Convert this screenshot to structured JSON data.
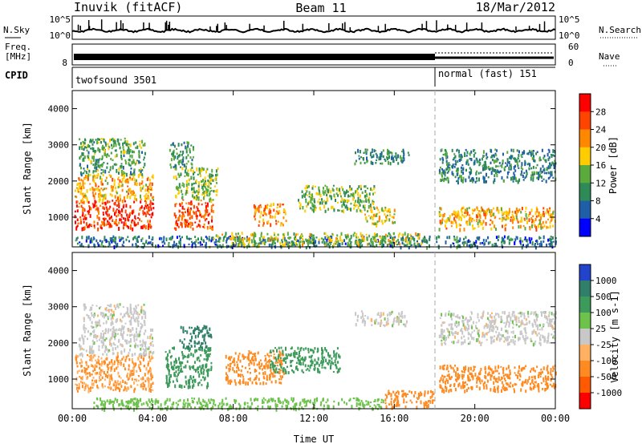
{
  "header": {
    "station": "Inuvik (fitACF)",
    "beam": "Beam 11",
    "date": "18/Mar/2012"
  },
  "left_labels": {
    "nsky": "N.Sky",
    "freq_line1": "Freq.",
    "freq_line2": "[MHz]",
    "cpid": "CPID"
  },
  "right_labels": {
    "nsearch": "N.Search",
    "nave": "Nave"
  },
  "noise_axis": {
    "top": "10^5",
    "bottom": "10^0"
  },
  "freq_axis": {
    "left_value": "8",
    "right_top": "60",
    "right_bottom": "0"
  },
  "cpid_segments": [
    {
      "label": "twofsound 3501",
      "start_hour": 0,
      "end_hour": 18.1
    },
    {
      "label": "normal (fast) 151",
      "start_hour": 18.1,
      "end_hour": 24
    }
  ],
  "chart_data": [
    {
      "type": "heatmap",
      "quantity": "Power",
      "colorbar_label": "Power [dB]",
      "colorbar_ticks": [
        "28",
        "24",
        "20",
        "16",
        "12",
        "8",
        "4"
      ],
      "colorbar_colors": [
        "#ff0000",
        "#ff4400",
        "#ff8800",
        "#ffcc00",
        "#5aab3c",
        "#2e8b57",
        "#1f5fa8",
        "#0000ff"
      ],
      "ylabel": "Slant Range [km]",
      "ylim": [
        180,
        4500
      ],
      "yticks": [
        "4000",
        "3000",
        "2000",
        "1000"
      ],
      "yticks_values": [
        4000,
        3000,
        2000,
        1000
      ],
      "xlim": [
        0,
        24
      ],
      "regions": [
        {
          "t0": 0.1,
          "t1": 4.0,
          "r0": 700,
          "r1": 1500,
          "power": 27
        },
        {
          "t0": 0.1,
          "t1": 4.0,
          "r0": 1500,
          "r1": 2200,
          "power": 20
        },
        {
          "t0": 0.3,
          "t1": 3.6,
          "r0": 2200,
          "r1": 3200,
          "power": 12
        },
        {
          "t0": 5.0,
          "t1": 7.0,
          "r0": 700,
          "r1": 1500,
          "power": 26
        },
        {
          "t0": 5.0,
          "t1": 7.2,
          "r0": 1500,
          "r1": 2400,
          "power": 14
        },
        {
          "t0": 4.8,
          "t1": 6.0,
          "r0": 2400,
          "r1": 3100,
          "power": 10
        },
        {
          "t0": 9.0,
          "t1": 10.6,
          "r0": 800,
          "r1": 1400,
          "power": 22
        },
        {
          "t0": 11.2,
          "t1": 15.0,
          "r0": 1200,
          "r1": 1900,
          "power": 14
        },
        {
          "t0": 14.0,
          "t1": 16.8,
          "r0": 2500,
          "r1": 2900,
          "power": 9
        },
        {
          "t0": 14.5,
          "t1": 16.0,
          "r0": 800,
          "r1": 1300,
          "power": 18
        },
        {
          "t0": 18.2,
          "t1": 24.0,
          "r0": 700,
          "r1": 1300,
          "power": 20
        },
        {
          "t0": 18.2,
          "t1": 24.0,
          "r0": 2000,
          "r1": 2900,
          "power": 9
        },
        {
          "t0": 0.1,
          "t1": 24.0,
          "r0": 200,
          "r1": 500,
          "power": 8
        },
        {
          "t0": 7.0,
          "t1": 17.5,
          "r0": 250,
          "r1": 600,
          "power": 16
        }
      ]
    },
    {
      "type": "heatmap",
      "quantity": "Velocity",
      "colorbar_label": "Velocity [m s-1]",
      "colorbar_ticks": [
        "1000",
        "500",
        "100",
        "25",
        "-25",
        "-100",
        "-500",
        "-1000"
      ],
      "colorbar_colors": [
        "#2244cc",
        "#2f7f6a",
        "#3c9a5a",
        "#6cc24a",
        "#c8c8c8",
        "#ffb060",
        "#ff8a20",
        "#ff5a00",
        "#ff0000"
      ],
      "ylabel": "Slant Range [km]",
      "ylim": [
        180,
        4500
      ],
      "yticks": [
        "4000",
        "3000",
        "2000",
        "1000"
      ],
      "yticks_values": [
        4000,
        3000,
        2000,
        1000
      ],
      "xlim": [
        0,
        24
      ],
      "xlabel": "Time UT",
      "xticks": [
        "00:00",
        "04:00",
        "08:00",
        "12:00",
        "16:00",
        "20:00",
        "00:00"
      ],
      "xticks_values": [
        0,
        4,
        8,
        12,
        16,
        20,
        24
      ],
      "regions": [
        {
          "t0": 0.1,
          "t1": 4.0,
          "r0": 700,
          "r1": 1700,
          "velocity": -100
        },
        {
          "t0": 0.3,
          "t1": 4.0,
          "r0": 1700,
          "r1": 2400,
          "velocity": 0
        },
        {
          "t0": 0.5,
          "t1": 3.6,
          "r0": 2400,
          "r1": 3100,
          "velocity": 0
        },
        {
          "t0": 4.6,
          "t1": 6.9,
          "r0": 800,
          "r1": 1900,
          "velocity": 150
        },
        {
          "t0": 5.3,
          "t1": 6.9,
          "r0": 1900,
          "r1": 2500,
          "velocity": 700
        },
        {
          "t0": 7.6,
          "t1": 10.5,
          "r0": 900,
          "r1": 1800,
          "velocity": -300
        },
        {
          "t0": 9.8,
          "t1": 13.3,
          "r0": 1200,
          "r1": 1900,
          "velocity": 150
        },
        {
          "t0": 14.0,
          "t1": 16.6,
          "r0": 2500,
          "r1": 2900,
          "velocity": 0
        },
        {
          "t0": 18.2,
          "t1": 24.0,
          "r0": 700,
          "r1": 1400,
          "velocity": -350
        },
        {
          "t0": 18.2,
          "t1": 24.0,
          "r0": 2000,
          "r1": 2900,
          "velocity": 0
        },
        {
          "t0": 1.0,
          "t1": 15.5,
          "r0": 200,
          "r1": 500,
          "velocity": 60
        },
        {
          "t0": 15.5,
          "t1": 18.0,
          "r0": 250,
          "r1": 700,
          "velocity": -200
        }
      ]
    }
  ]
}
